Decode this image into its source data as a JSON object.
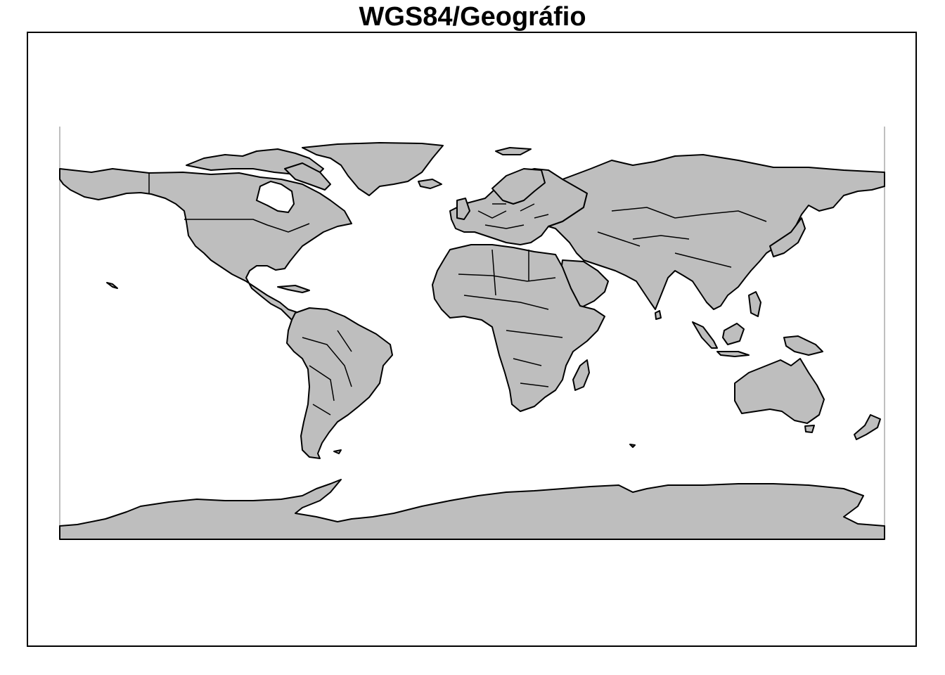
{
  "title": "WGS84/Geográfio",
  "map": {
    "projection": "equirectangular",
    "land_color": "#bebebe",
    "outline_color": "#000000",
    "extent": {
      "lon": [
        -180,
        180
      ],
      "lat": [
        -90,
        90
      ]
    }
  }
}
